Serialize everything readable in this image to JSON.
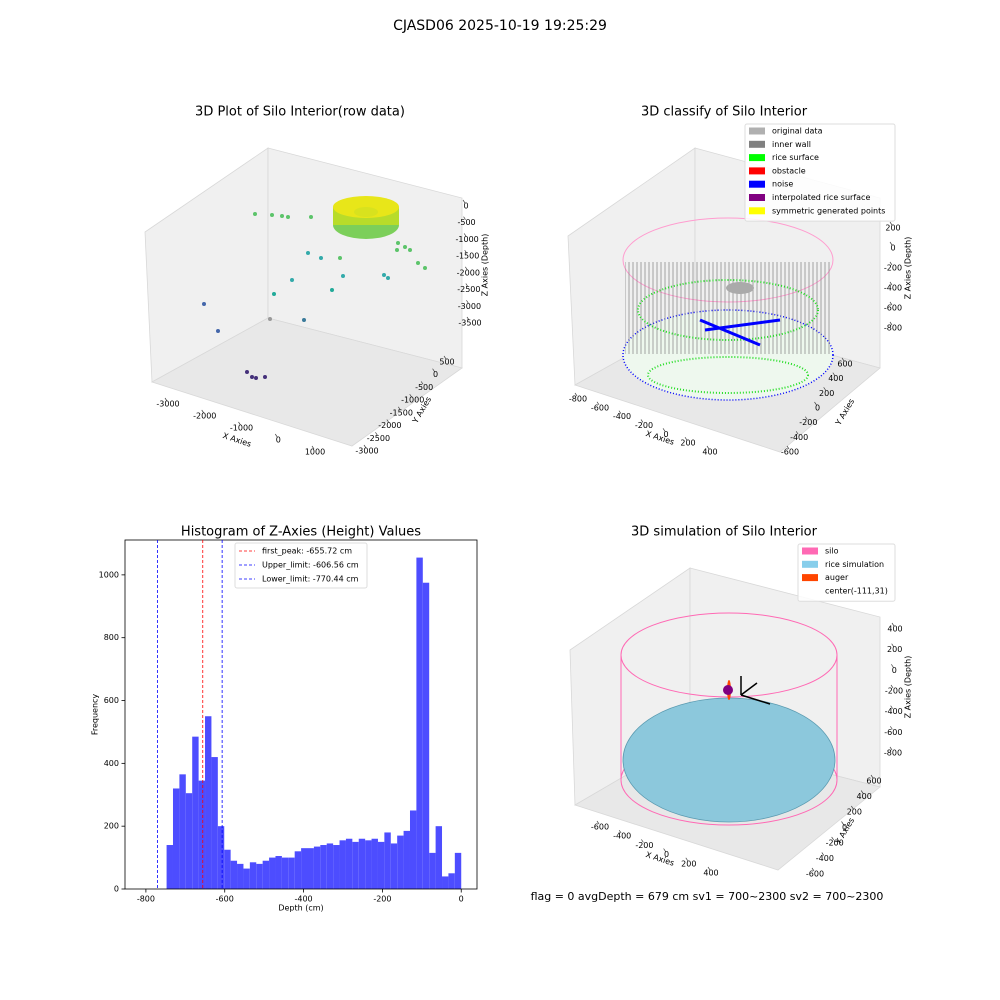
{
  "title": "CJASD06 2025-10-19 19:25:29",
  "chart_data": [
    {
      "type": "scatter3d",
      "title": "3D Plot of Silo Interior(row data)",
      "xlabel": "X Axies",
      "ylabel": "Y Axies",
      "zlabel": "Z Axies (Depth)",
      "xticks": [
        -3000,
        -2000,
        -1000,
        0,
        1000
      ],
      "yticks": [
        500,
        0,
        -500,
        -1000,
        -1500,
        -2000,
        -2500,
        -3000
      ],
      "zticks": [
        0,
        -500,
        -1000,
        -1500,
        -2000,
        -2500,
        -3000,
        -3500
      ]
    },
    {
      "type": "scatter3d",
      "title": "3D classify of Silo Interior",
      "xlabel": "X Axies",
      "ylabel": "Y Axies",
      "zlabel": "Z Axies (Depth)",
      "xticks": [
        -800,
        -600,
        -400,
        -200,
        0,
        200,
        400
      ],
      "yticks": [
        600,
        400,
        200,
        0,
        -200,
        -400,
        -600
      ],
      "zticks": [
        200,
        0,
        -200,
        -400,
        -600,
        -800
      ],
      "legend": [
        {
          "name": "original data",
          "color": "#b0b0b0"
        },
        {
          "name": "inner wall",
          "color": "#808080"
        },
        {
          "name": "rice surface",
          "color": "#00ff00"
        },
        {
          "name": "obstacle",
          "color": "#ff0000"
        },
        {
          "name": "noise",
          "color": "#0000ff"
        },
        {
          "name": "interpolated rice surface",
          "color": "#800080"
        },
        {
          "name": "symmetric generated points",
          "color": "#ffff00"
        }
      ]
    },
    {
      "type": "histogram",
      "title": "Histogram of Z-Axies (Height) Values",
      "xlabel": "Depth (cm)",
      "ylabel": "Frequency",
      "color": "#4d4dff",
      "bins": [
        -747.5,
        -731.25,
        -715,
        -698.75,
        -682.5,
        -666.25,
        -650,
        -633.75,
        -617.5,
        -601.25,
        -585,
        -568.75,
        -552.5,
        -536.25,
        -520,
        -503.75,
        -487.5,
        -471.25,
        -455,
        -438.75,
        -422.5,
        -406.25,
        -390,
        -373.75,
        -357.5,
        -341.25,
        -325,
        -308.75,
        -292.5,
        -276.25,
        -260,
        -243.75,
        -227.5,
        -211.25,
        -195,
        -178.75,
        -162.5,
        -146.25,
        -130,
        -113.75,
        -97.5,
        -81.25,
        -65,
        -48.75,
        -32.5,
        -16.25,
        0
      ],
      "counts": [
        140,
        320,
        365,
        305,
        485,
        345,
        550,
        420,
        200,
        125,
        90,
        80,
        65,
        85,
        80,
        90,
        100,
        105,
        100,
        100,
        120,
        130,
        130,
        135,
        140,
        145,
        140,
        155,
        160,
        150,
        160,
        155,
        160,
        150,
        180,
        145,
        170,
        185,
        250,
        1055,
        975,
        115,
        200,
        40,
        50,
        115
      ],
      "xlim": [
        -853,
        40
      ],
      "ylim": [
        0,
        1111
      ],
      "xticks": [
        -800,
        -600,
        -400,
        -200,
        0
      ],
      "yticks": [
        0,
        200,
        400,
        600,
        800,
        1000
      ],
      "vlines": [
        {
          "name": "first_peak: -655.72 cm",
          "value": -655.72,
          "color": "#ff0000"
        },
        {
          "name": "Upper_limit: -606.56 cm",
          "value": -606.56,
          "color": "#0000ff"
        },
        {
          "name": "Lower_limit: -770.44 cm",
          "value": -770.44,
          "color": "#0000ff"
        }
      ]
    },
    {
      "type": "scatter3d",
      "title": "3D simulation of Silo Interior",
      "xlabel": "X Axies",
      "ylabel": "Y Axies",
      "zlabel": "Z Axies (Depth)",
      "xticks": [
        -600,
        -400,
        -200,
        0,
        200,
        400
      ],
      "yticks": [
        600,
        400,
        200,
        0,
        -200,
        -400,
        -600
      ],
      "zticks": [
        400,
        200,
        0,
        -200,
        -400,
        -600,
        -800
      ],
      "legend": [
        {
          "name": "silo",
          "color": "#ff69b4"
        },
        {
          "name": "rice simulation",
          "color": "#87ceeb"
        },
        {
          "name": "auger",
          "color": "#ff4500"
        },
        {
          "name": "center(-111,31)"
        }
      ],
      "annotation": "flag = 0     avgDepth = 679 cm  sv1 = 700~2300  sv2 = 700~2300"
    }
  ]
}
